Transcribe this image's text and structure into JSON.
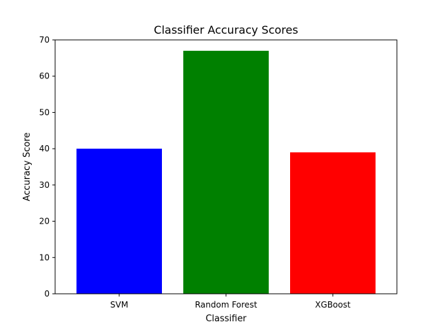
{
  "chart_data": {
    "type": "bar",
    "title": "Classifier Accuracy Scores",
    "xlabel": "Classifier",
    "ylabel": "Accuracy Score",
    "categories": [
      "SVM",
      "Random Forest",
      "XGBoost"
    ],
    "values": [
      40,
      67,
      39
    ],
    "colors": [
      "#0000ff",
      "#008000",
      "#ff0000"
    ],
    "ylim": [
      0,
      70
    ],
    "yticks": [
      0,
      10,
      20,
      30,
      40,
      50,
      60,
      70
    ],
    "grid": false,
    "legend": "none"
  }
}
